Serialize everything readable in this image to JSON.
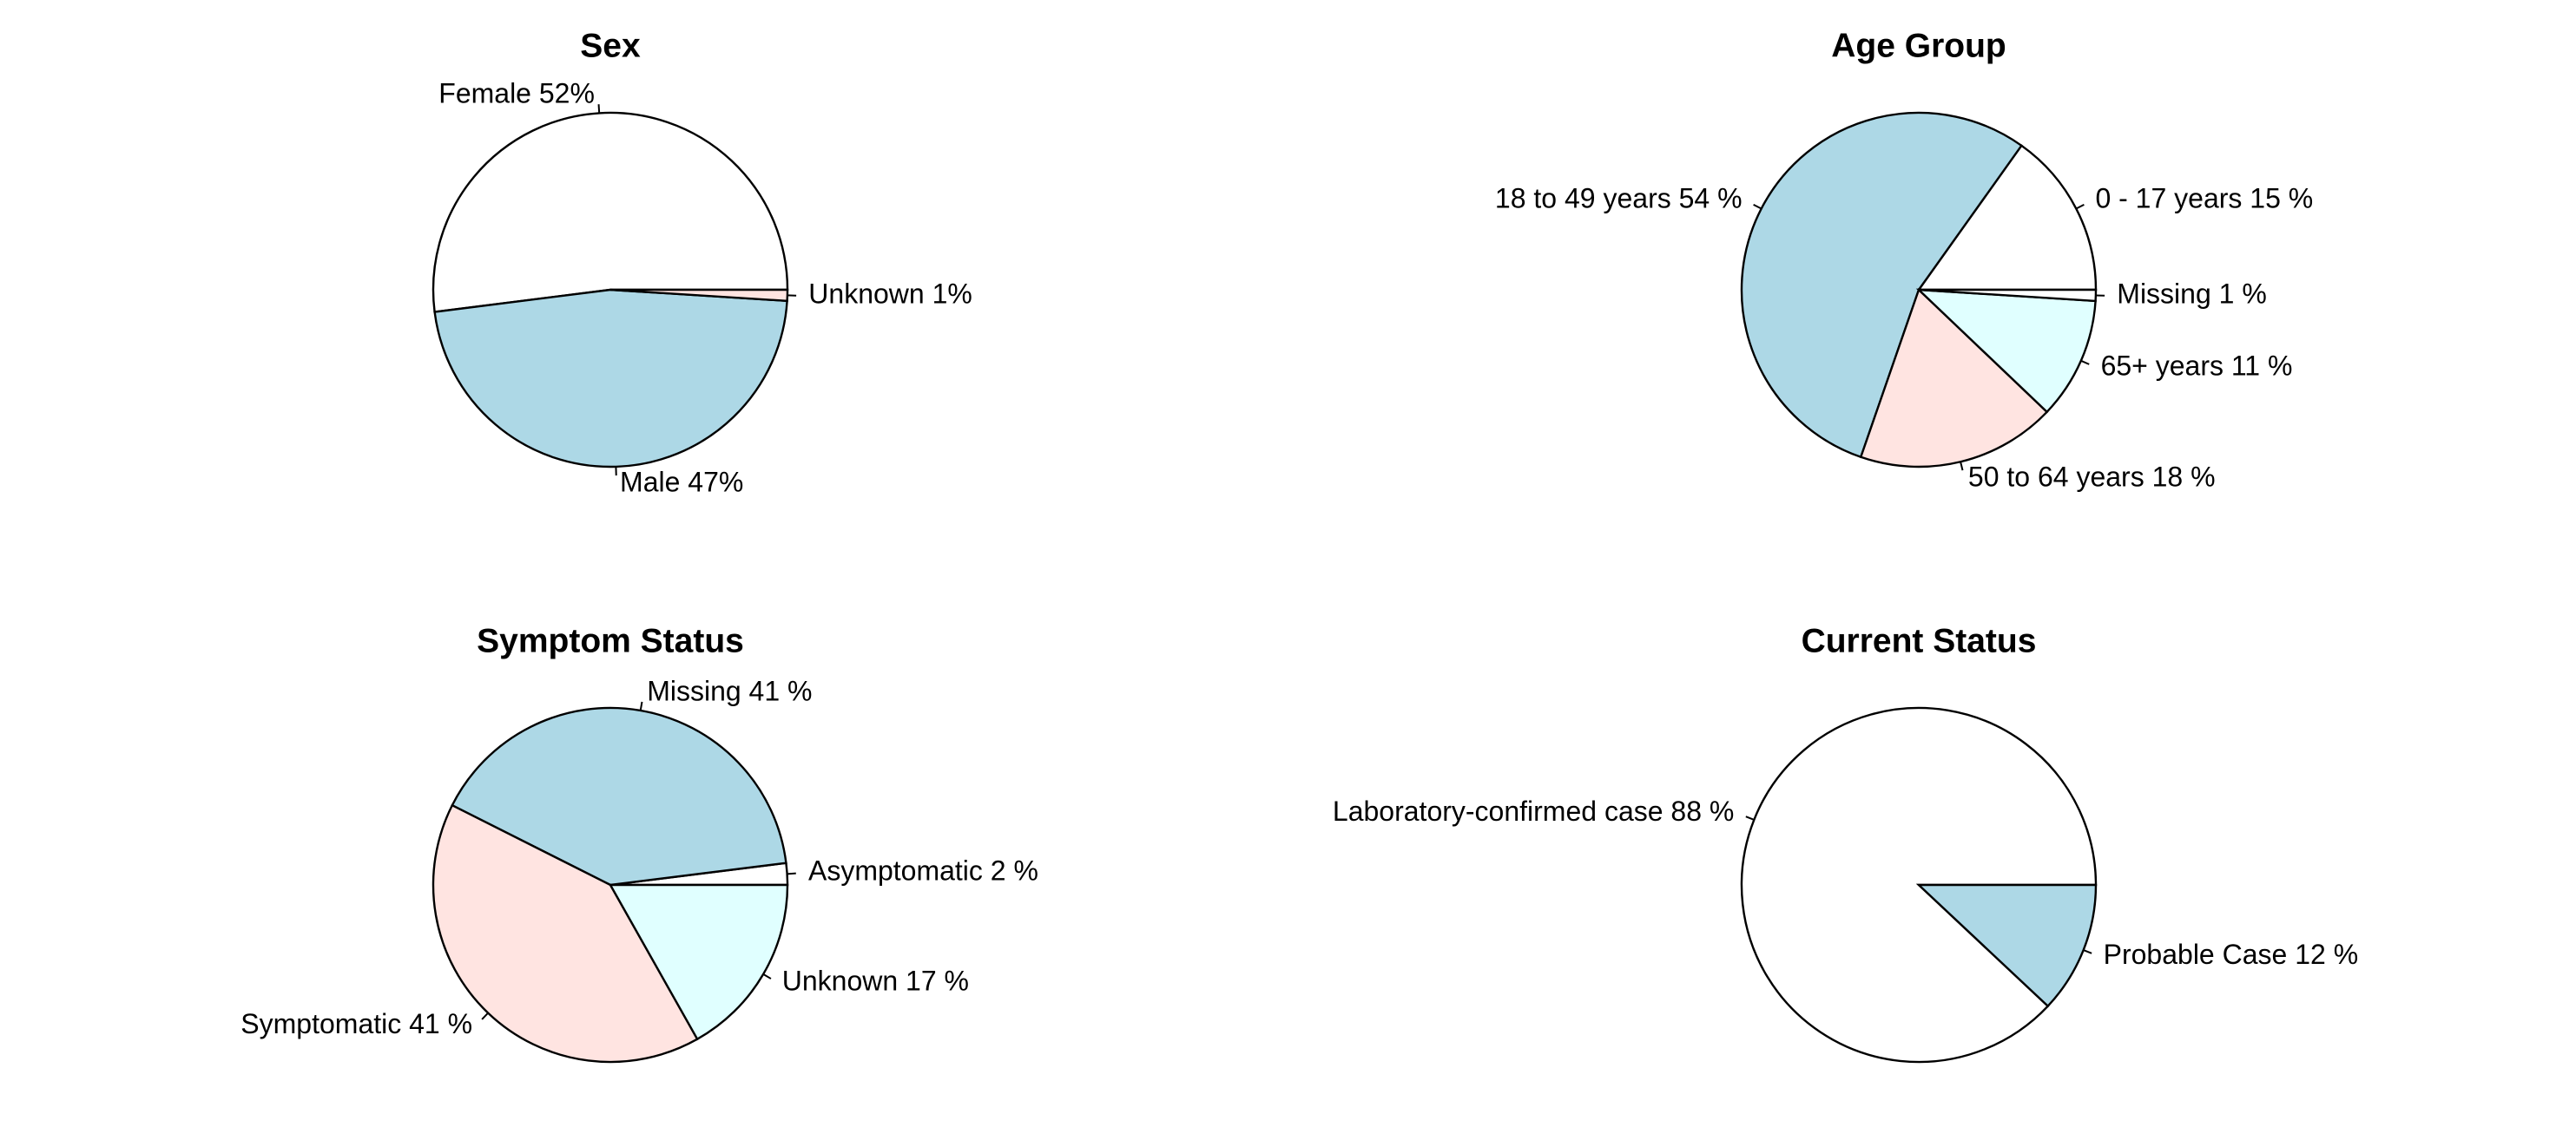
{
  "chart_data": [
    {
      "type": "pie",
      "title": "Sex",
      "slices": [
        {
          "label": "Female 52%",
          "value": 52,
          "color": "#ffffff"
        },
        {
          "label": "Male 47%",
          "value": 47,
          "color": "#add8e6"
        },
        {
          "label": "Unknown 1%",
          "value": 1,
          "color": "#ffe4e1"
        }
      ]
    },
    {
      "type": "pie",
      "title": "Age Group",
      "slices": [
        {
          "label": "0 - 17 years 15 %",
          "value": 15,
          "color": "#ffffff"
        },
        {
          "label": "18 to 49 years 54 %",
          "value": 54,
          "color": "#add8e6"
        },
        {
          "label": "50 to 64 years 18 %",
          "value": 18,
          "color": "#ffe4e1"
        },
        {
          "label": "65+ years 11 %",
          "value": 11,
          "color": "#e0ffff"
        },
        {
          "label": "Missing 1 %",
          "value": 1,
          "color": "#ffffff"
        }
      ]
    },
    {
      "type": "pie",
      "title": "Symptom Status",
      "slices": [
        {
          "label": "Asymptomatic 2 %",
          "value": 2,
          "color": "#ffffff"
        },
        {
          "label": "Missing 41 %",
          "value": 41,
          "color": "#add8e6"
        },
        {
          "label": "Symptomatic 41 %",
          "value": 41,
          "color": "#ffe4e1"
        },
        {
          "label": "Unknown 17 %",
          "value": 17,
          "color": "#e0ffff"
        }
      ]
    },
    {
      "type": "pie",
      "title": "Current Status",
      "slices": [
        {
          "label": "Laboratory-confirmed case 88 %",
          "value": 88,
          "color": "#ffffff"
        },
        {
          "label": "Probable Case 12 %",
          "value": 12,
          "color": "#add8e6"
        }
      ]
    }
  ]
}
